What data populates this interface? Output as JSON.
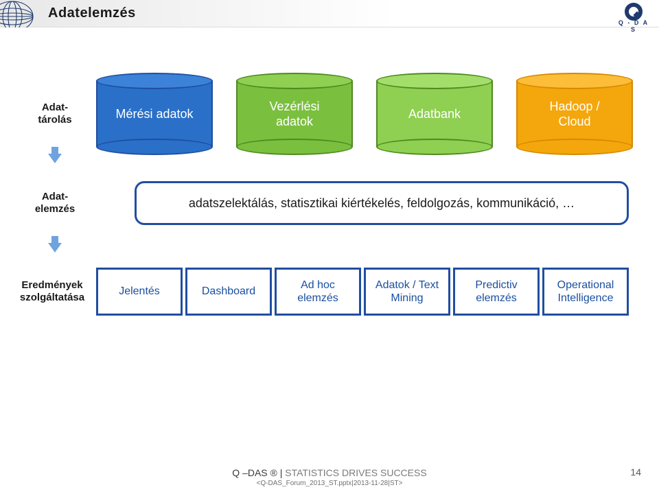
{
  "title": "Adatelemzés",
  "qdas_label": "Q - D A S",
  "globe_stroke": "#1f3a6e",
  "rows": {
    "storage": {
      "label": "Adat-\ntárolás",
      "cylinders": [
        {
          "lines": [
            "Mérési  adatok"
          ],
          "fill": "#2a70c8",
          "stroke": "#1f4ea1",
          "topfill": "#3b82d8"
        },
        {
          "lines": [
            "Vezérlési",
            "adatok"
          ],
          "fill": "#7bbf3f",
          "stroke": "#4e8a20",
          "topfill": "#8fcf52"
        },
        {
          "lines": [
            "Adatbank"
          ],
          "fill": "#8fcf52",
          "stroke": "#4e8a20",
          "topfill": "#a3de6a"
        },
        {
          "lines": [
            "Hadoop /",
            "Cloud"
          ],
          "fill": "#f4a70c",
          "stroke": "#d68900",
          "topfill": "#fcbd38"
        }
      ]
    },
    "analysis": {
      "label": "Adat-\nelemzés",
      "text": "adatszelektálás, statisztikai kiértékelés, feldolgozás, kommunikáció, …",
      "border": "#1f4ea1"
    },
    "results": {
      "label": "Eredmények\nszolgáltatása",
      "boxes": [
        {
          "lines": [
            "Jelentés"
          ]
        },
        {
          "lines": [
            "Dashboard"
          ]
        },
        {
          "lines": [
            "Ad hoc",
            "elemzés"
          ]
        },
        {
          "lines": [
            "Adatok / Text",
            "Mining"
          ]
        },
        {
          "lines": [
            "Predictiv",
            "elemzés"
          ]
        },
        {
          "lines": [
            "Operational",
            "Intelligence"
          ]
        }
      ],
      "box_border": "#1f4ea1",
      "box_text_color": "#194fa0"
    }
  },
  "arrow_color": "#6fa3e0",
  "footer": {
    "main_prefix": "Q –DAS ® | ",
    "main_rest": "STATISTICS DRIVES SUCCESS",
    "sub": "<Q-DAS_Forum_2013_ST.pptx|2013-11-28|ST>",
    "prefix_color": "#3a3a3a",
    "rest_color": "#7a7a7a"
  },
  "page_number": "14"
}
